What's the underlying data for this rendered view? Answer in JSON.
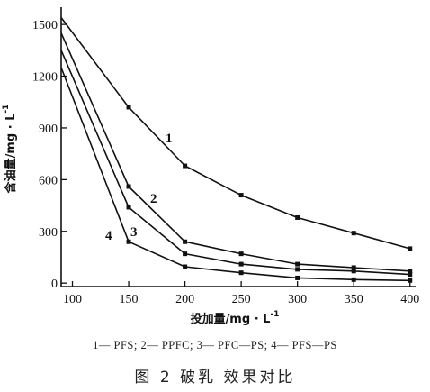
{
  "chart_data": {
    "type": "line",
    "xlabel": "投加量/mg · L",
    "xlabel_sup": "-1",
    "ylabel": "含油量/mg · L",
    "ylabel_sup": "-1",
    "xlim": [
      90,
      405
    ],
    "ylim": [
      -20,
      1600
    ],
    "x_ticks": [
      100,
      150,
      200,
      250,
      300,
      350,
      400
    ],
    "y_ticks": [
      0,
      300,
      600,
      900,
      1200,
      1500
    ],
    "x": [
      90,
      150,
      200,
      250,
      300,
      350,
      400
    ],
    "series": [
      {
        "name": "1",
        "values": [
          1540,
          1020,
          680,
          510,
          380,
          290,
          200
        ]
      },
      {
        "name": "2",
        "values": [
          1450,
          560,
          240,
          170,
          110,
          90,
          70
        ]
      },
      {
        "name": "3",
        "values": [
          1350,
          440,
          170,
          110,
          80,
          70,
          50
        ]
      },
      {
        "name": "4",
        "values": [
          1250,
          240,
          95,
          60,
          30,
          20,
          15
        ]
      }
    ],
    "grid": false,
    "legend": "1— PFS; 2— PPFC; 3— PFC—PS; 4— PFS—PS",
    "caption": "图 2   破乳 效果对比"
  }
}
